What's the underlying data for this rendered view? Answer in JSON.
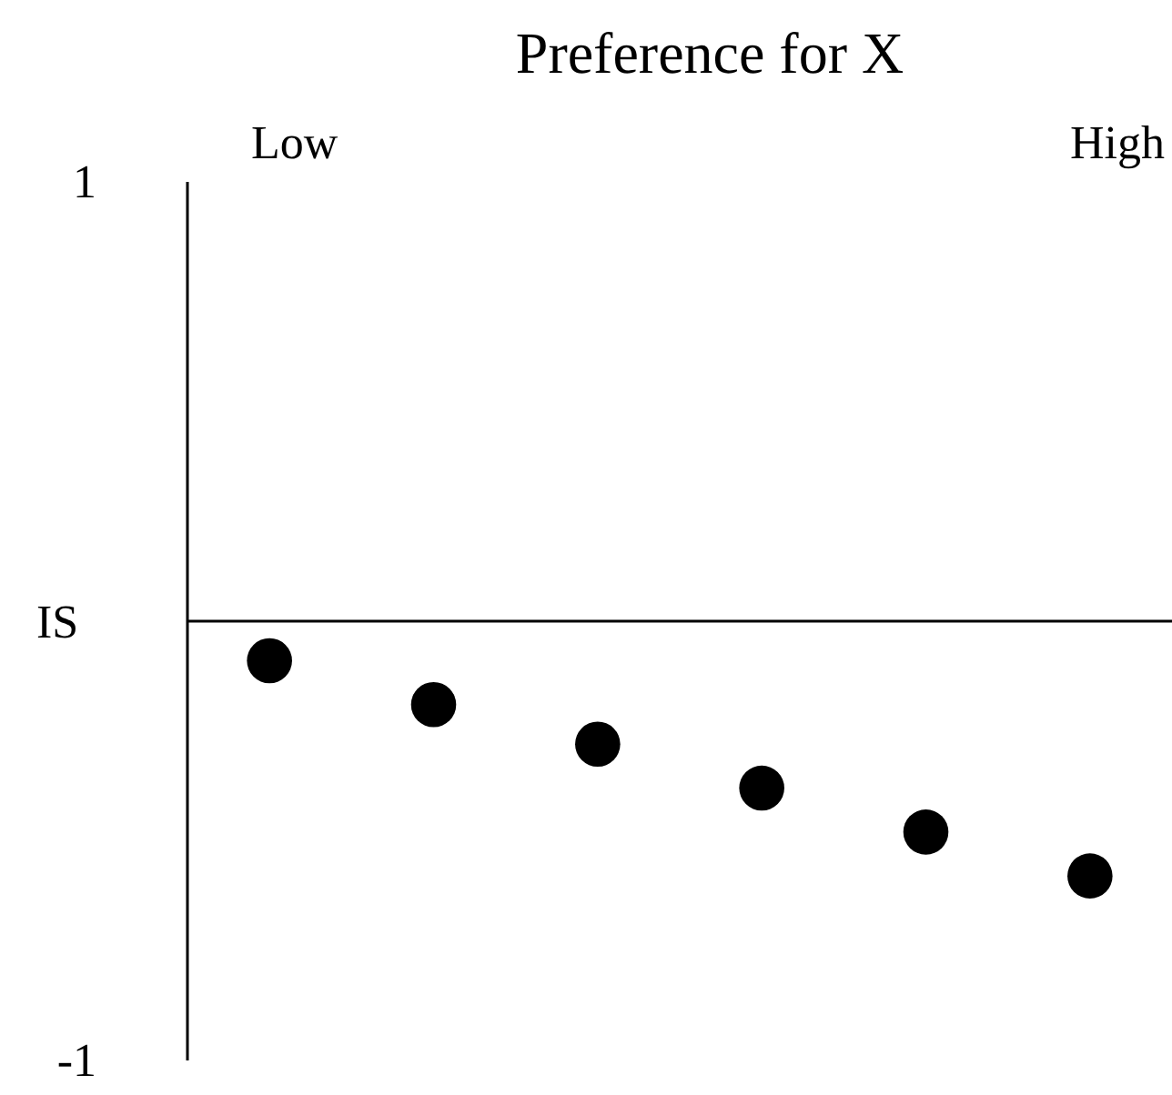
{
  "chart_data": {
    "type": "scatter",
    "title": "Preference for X",
    "ylabel": "IS",
    "categories": [
      null,
      null,
      null,
      null,
      null,
      null
    ],
    "values": [
      -0.09,
      -0.19,
      -0.28,
      -0.38,
      -0.48,
      -0.58
    ],
    "color": "#000000",
    "marker": "circle",
    "ylim": [
      -1,
      1
    ],
    "yticks": [
      -1,
      1
    ],
    "annotations": [
      "Low",
      "High"
    ]
  }
}
